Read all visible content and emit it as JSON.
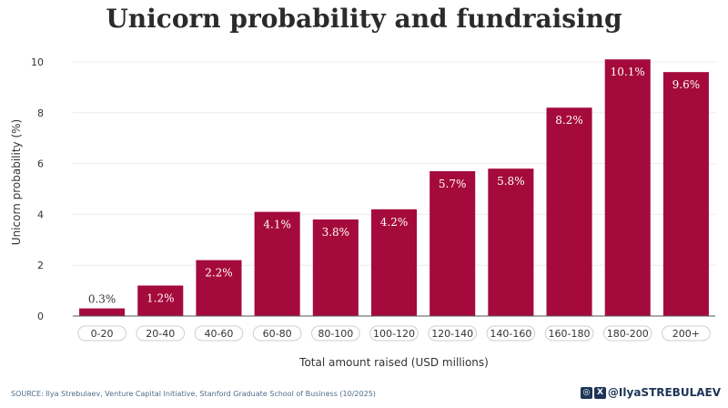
{
  "chart_data": {
    "type": "bar",
    "title": "Unicorn probability and fundraising",
    "xlabel": "Total amount raised (USD millions)",
    "ylabel": "Unicorn probability (%)",
    "categories": [
      "0-20",
      "20-40",
      "40-60",
      "60-80",
      "80-100",
      "100-120",
      "120-140",
      "140-160",
      "160-180",
      "180-200",
      "200+"
    ],
    "values": [
      0.3,
      1.2,
      2.2,
      4.1,
      3.8,
      4.2,
      5.7,
      5.8,
      8.2,
      10.1,
      9.6
    ],
    "value_labels": [
      "0.3%",
      "1.2%",
      "2.2%",
      "4.1%",
      "3.8%",
      "4.2%",
      "5.7%",
      "5.8%",
      "8.2%",
      "10.1%",
      "9.6%"
    ],
    "yticks": [
      0,
      2,
      4,
      6,
      8,
      10
    ],
    "ylim": [
      0,
      10.2
    ],
    "grid": true,
    "bar_color": "#a50a3c"
  },
  "source": "SOURCE: Ilya Strebulaev, Venture Capital Initiative, Stanford Graduate School of Business (10/2025)",
  "brand": {
    "handle": "@IlyaSTREBULAEV",
    "icons": [
      "instagram-icon",
      "x-icon"
    ]
  }
}
